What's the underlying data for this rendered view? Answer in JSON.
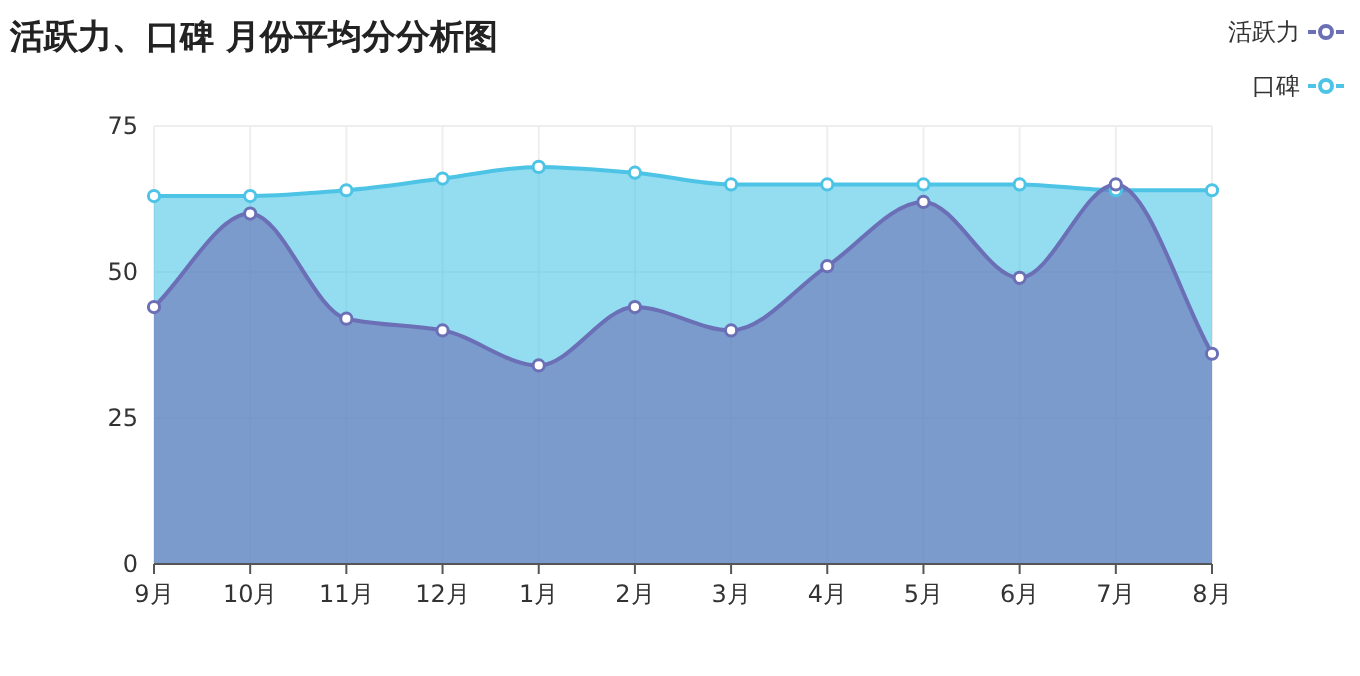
{
  "chart_data": {
    "type": "area",
    "title": "活跃力、口碑 月份平均分分析图",
    "categories": [
      "9月",
      "10月",
      "11月",
      "12月",
      "1月",
      "2月",
      "3月",
      "4月",
      "5月",
      "6月",
      "7月",
      "8月"
    ],
    "series": [
      {
        "name": "活跃力",
        "color": "#6b6fb5",
        "values": [
          44,
          60,
          42,
          40,
          34,
          44,
          40,
          51,
          62,
          49,
          65,
          36
        ]
      },
      {
        "name": "口碑",
        "color": "#4dc4e6",
        "values": [
          63,
          63,
          64,
          66,
          68,
          67,
          65,
          65,
          65,
          65,
          64,
          64
        ]
      }
    ],
    "ylim": [
      0,
      75
    ],
    "yticks": [
      0,
      25,
      50,
      75
    ],
    "grid": true,
    "legend": "top right",
    "marker": "circle"
  }
}
